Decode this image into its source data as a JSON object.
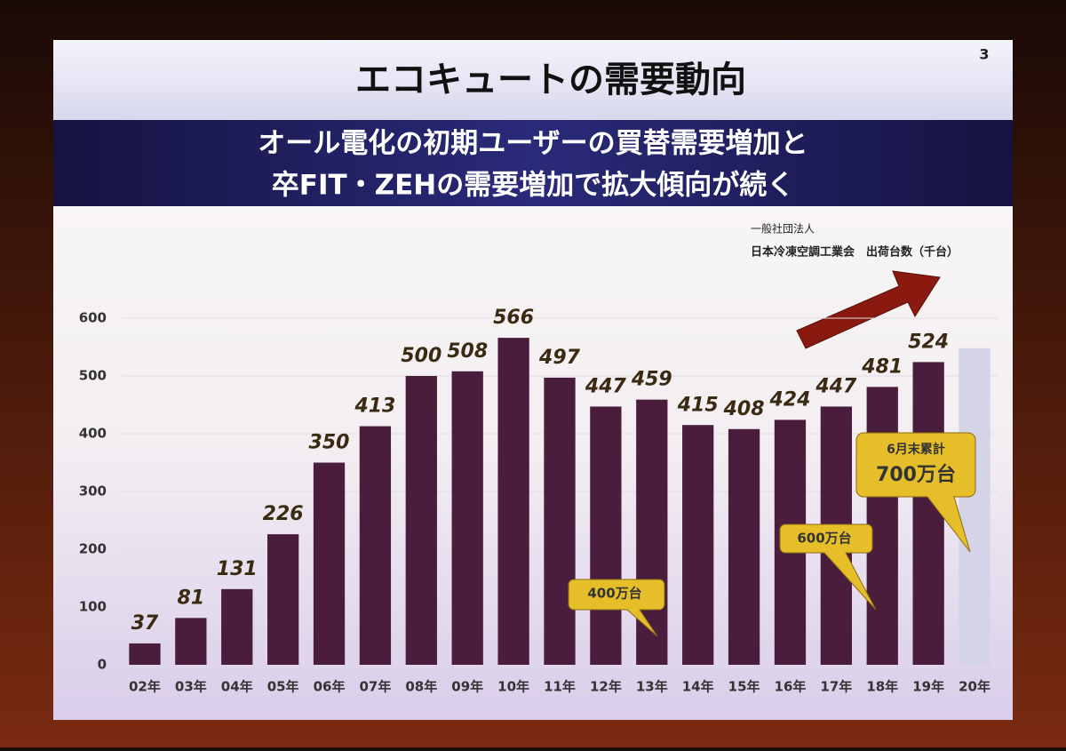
{
  "chart_data": {
    "type": "bar",
    "title": "エコキュートの需要動向",
    "page_number": "3",
    "subtitle": [
      "オール電化の初期ユーザーの買替需要増加と",
      "卒FIT・ZEHの需要増加で拡大傾向が続く"
    ],
    "source": [
      "一般社団法人",
      "日本冷凍空調工業会　出荷台数（千台）"
    ],
    "annotations": [
      "400万台",
      "600万台",
      "6月末累計",
      "700万台"
    ],
    "categories": [
      "02年",
      "03年",
      "04年",
      "05年",
      "06年",
      "07年",
      "08年",
      "09年",
      "10年",
      "11年",
      "12年",
      "13年",
      "14年",
      "15年",
      "16年",
      "17年",
      "18年",
      "19年",
      "20年"
    ],
    "series": [
      {
        "color": "#4a1d3c",
        "data_labels": true,
        "values": [
          37,
          81,
          131,
          226,
          350,
          413,
          500,
          508,
          566,
          497,
          447,
          459,
          415,
          408,
          424,
          447,
          481,
          524,
          null
        ]
      },
      {
        "color": "#d4d3e8",
        "data_labels": false,
        "values": [
          null,
          null,
          null,
          null,
          null,
          null,
          null,
          null,
          null,
          null,
          null,
          null,
          null,
          null,
          null,
          null,
          null,
          null,
          548
        ]
      }
    ],
    "ylim": [
      0,
      600
    ],
    "yticks": [
      0,
      100,
      200,
      300,
      400,
      500,
      600
    ],
    "grid": true
  }
}
